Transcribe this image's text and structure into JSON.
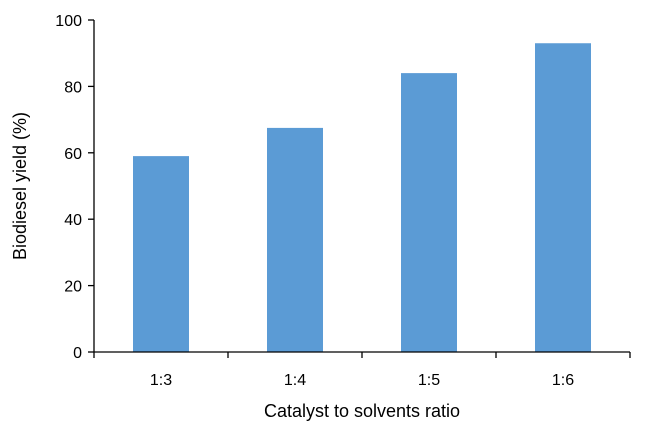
{
  "chart_data": {
    "type": "bar",
    "categories": [
      "1:3",
      "1:4",
      "1:5",
      "1:6"
    ],
    "values": [
      59,
      67.5,
      84,
      93
    ],
    "xlabel": "Catalyst to solvents ratio",
    "ylabel": "Biodiesel yield (%)",
    "ylim": [
      0,
      100
    ],
    "yticks": [
      0,
      20,
      40,
      60,
      80,
      100
    ],
    "grid": false,
    "legend": "none",
    "bar_color": "#5b9bd5",
    "axis_color": "#000000"
  }
}
